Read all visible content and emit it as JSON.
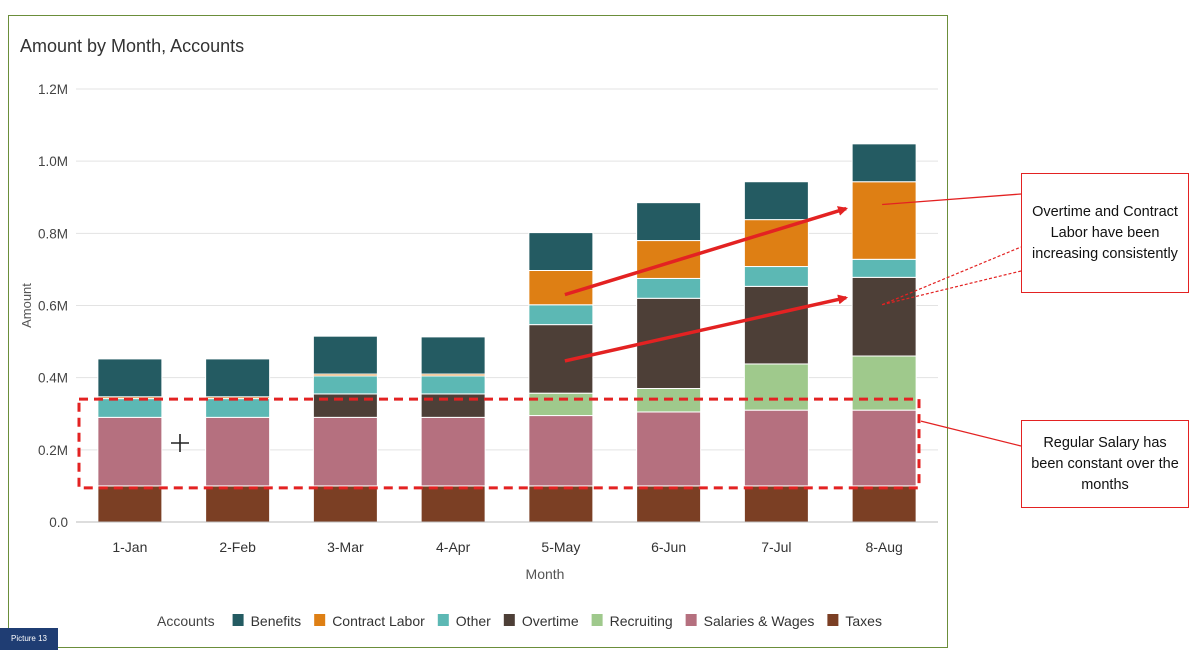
{
  "chart_data": {
    "type": "stacked-bar",
    "title": "Amount by Month, Accounts",
    "xlabel": "Month",
    "ylabel": "Amount",
    "ylim": [
      0,
      1200000
    ],
    "yticks": [
      {
        "value": 0,
        "label": "0.0"
      },
      {
        "value": 200000,
        "label": "0.2M"
      },
      {
        "value": 400000,
        "label": "0.4M"
      },
      {
        "value": 600000,
        "label": "0.6M"
      },
      {
        "value": 800000,
        "label": "0.8M"
      },
      {
        "value": 1000000,
        "label": "1.0M"
      },
      {
        "value": 1200000,
        "label": "1.2M"
      }
    ],
    "grid": true,
    "legend_position": "bottom",
    "legend_title": "Accounts",
    "categories": [
      "1-Jan",
      "2-Feb",
      "3-Mar",
      "4-Apr",
      "5-May",
      "6-Jun",
      "7-Jul",
      "8-Aug"
    ],
    "series": [
      {
        "name": "Taxes",
        "color": "#7b3f24",
        "values": [
          100000,
          100000,
          100000,
          100000,
          100000,
          100000,
          100000,
          100000
        ]
      },
      {
        "name": "Salaries & Wages",
        "color": "#b5707f",
        "values": [
          190000,
          190000,
          190000,
          190000,
          195000,
          205000,
          210000,
          210000
        ]
      },
      {
        "name": "Recruiting",
        "color": "#9fc98c",
        "values": [
          0,
          0,
          0,
          0,
          62000,
          65000,
          128000,
          150000
        ]
      },
      {
        "name": "Overtime",
        "color": "#4d3f37",
        "values": [
          0,
          0,
          65000,
          65000,
          190000,
          250000,
          215000,
          218000
        ]
      },
      {
        "name": "Other",
        "color": "#5cb8b4",
        "values": [
          52000,
          52000,
          50000,
          50000,
          55000,
          55000,
          55000,
          50000
        ]
      },
      {
        "name": "Contract Labor",
        "color": "#de7f14",
        "values": [
          5000,
          5000,
          5000,
          5000,
          95000,
          105000,
          130000,
          215000
        ]
      },
      {
        "name": "Benefits",
        "color": "#245b62",
        "values": [
          105000,
          105000,
          105000,
          103000,
          105000,
          105000,
          105000,
          105000
        ]
      }
    ],
    "legend_order": [
      "Benefits",
      "Contract Labor",
      "Other",
      "Overtime",
      "Recruiting",
      "Salaries & Wages",
      "Taxes"
    ]
  },
  "annotations": {
    "callout_1": "Overtime and Contract Labor have been increasing consistently",
    "callout_2": "Regular Salary has been constant over the months",
    "accent_color": "#e32222"
  },
  "picture_label": "Picture 13"
}
